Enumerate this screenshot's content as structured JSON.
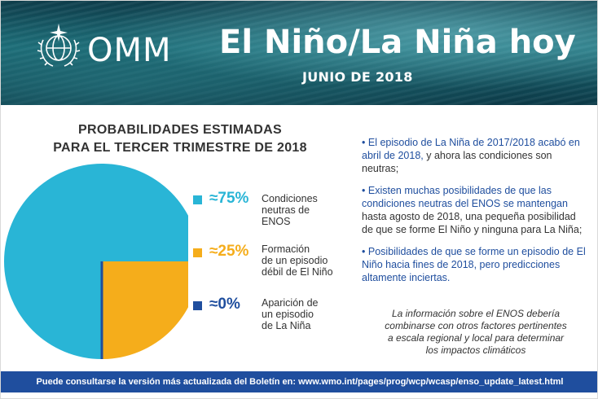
{
  "header": {
    "logo_text": "OMM",
    "title": "El Niño/La Niña hoy",
    "subtitle": "JUNIO DE 2018"
  },
  "chart_data": {
    "type": "pie",
    "title": "PROBABILIDADES ESTIMADAS PARA EL TERCER TRIMESTRE DE 2018",
    "title_lines": [
      "PROBABILIDADES ESTIMADAS",
      "PARA EL TERCER TRIMESTRE DE 2018"
    ],
    "slices": [
      {
        "label": "Condiciones neutras de ENOS",
        "label_lines": [
          "Condiciones",
          "neutras de",
          "ENOS"
        ],
        "value": 75,
        "display": "≈75%",
        "color": "#29b5d6"
      },
      {
        "label": "Formación de un episodio débil de El Niño",
        "label_lines": [
          "Formación",
          "de un episodio",
          "débil de El Niño"
        ],
        "value": 25,
        "display": "≈25%",
        "color": "#f5ad1b"
      },
      {
        "label": "Aparición de un episodio de La Niña",
        "label_lines": [
          "Aparición de",
          "un episodio",
          "de La Niña"
        ],
        "value": 0,
        "display": "≈0%",
        "color": "#1f4e9e"
      }
    ]
  },
  "bullets": [
    {
      "dot": "•",
      "highlight": "El episodio de La Niña de 2017/2018 acabó en abril de 2018,",
      "rest": " y ahora las condiciones son neutras;"
    },
    {
      "dot": "•",
      "highlight": "Existen muchas posibilidades de que las condiciones neutras del ENOS se mantengan",
      "rest": " hasta agosto de 2018, una pequeña posibilidad de que se forme El Niño y ninguna para La Niña;"
    },
    {
      "dot": "•",
      "highlight": "Posibilidades de que se forme un episodio de El Niño hacia fines de 2018, pero predicciones altamente inciertas.",
      "rest": ""
    }
  ],
  "note": "La información sobre el ENOS debería combinarse con otros factores pertinentes a escala regional y local para determinar los impactos climáticos",
  "footer": {
    "text": "Puede consultarse la versión más actualizada del Boletín en: ",
    "link": "www.wmo.int/pages/prog/wcp/wcasp/enso_update_latest.html"
  },
  "colors": {
    "blue": "#1f4e9e",
    "cyan": "#29b5d6",
    "orange": "#f5ad1b"
  }
}
